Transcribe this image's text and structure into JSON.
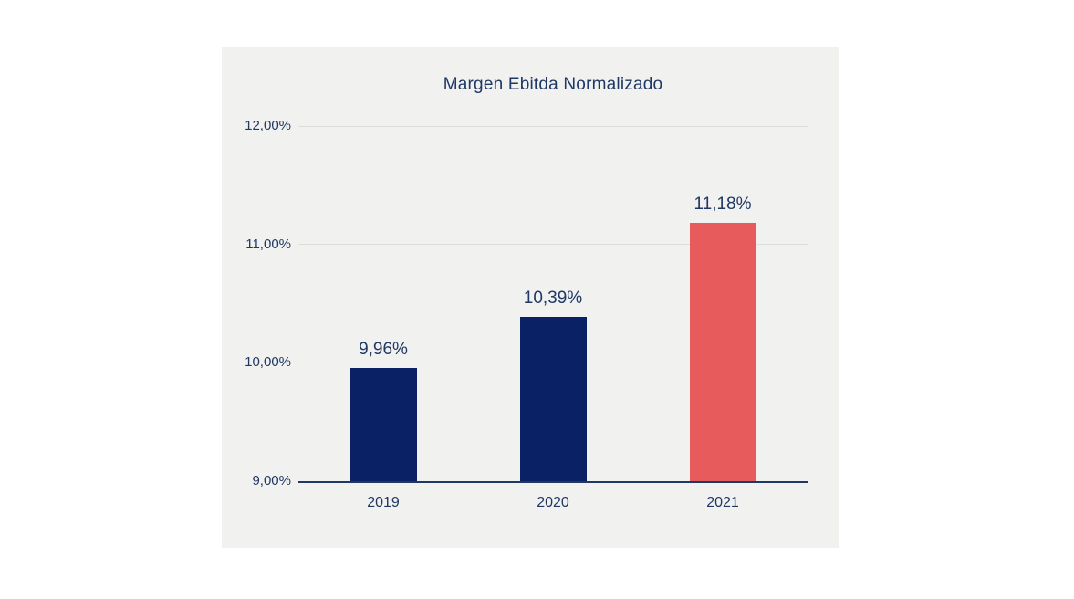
{
  "window": {
    "background_color": "#ffffff"
  },
  "chart_panel": {
    "background_color": "#f1f1f0"
  },
  "chart_data": {
    "type": "bar",
    "title": "Margen Ebitda Normalizado",
    "categories": [
      "2019",
      "2020",
      "2021"
    ],
    "values": [
      9.96,
      10.39,
      11.18
    ],
    "data_labels": [
      "9,96%",
      "10,39%",
      "11,18%"
    ],
    "bar_colors": [
      "#0a2166",
      "#0a2166",
      "#e85b5c"
    ],
    "ylim": [
      9,
      12
    ],
    "y_ticks": [
      {
        "value": 12,
        "label": "12,00%"
      },
      {
        "value": 11,
        "label": "11,00%"
      },
      {
        "value": 10,
        "label": "10,00%"
      },
      {
        "value": 9,
        "label": "9,00%"
      }
    ],
    "xlabel": "",
    "ylabel": "",
    "grid": true,
    "legend": false,
    "colors": {
      "text": "#203864",
      "gridline": "#dddddc",
      "axis_line": "#1f3864"
    }
  }
}
